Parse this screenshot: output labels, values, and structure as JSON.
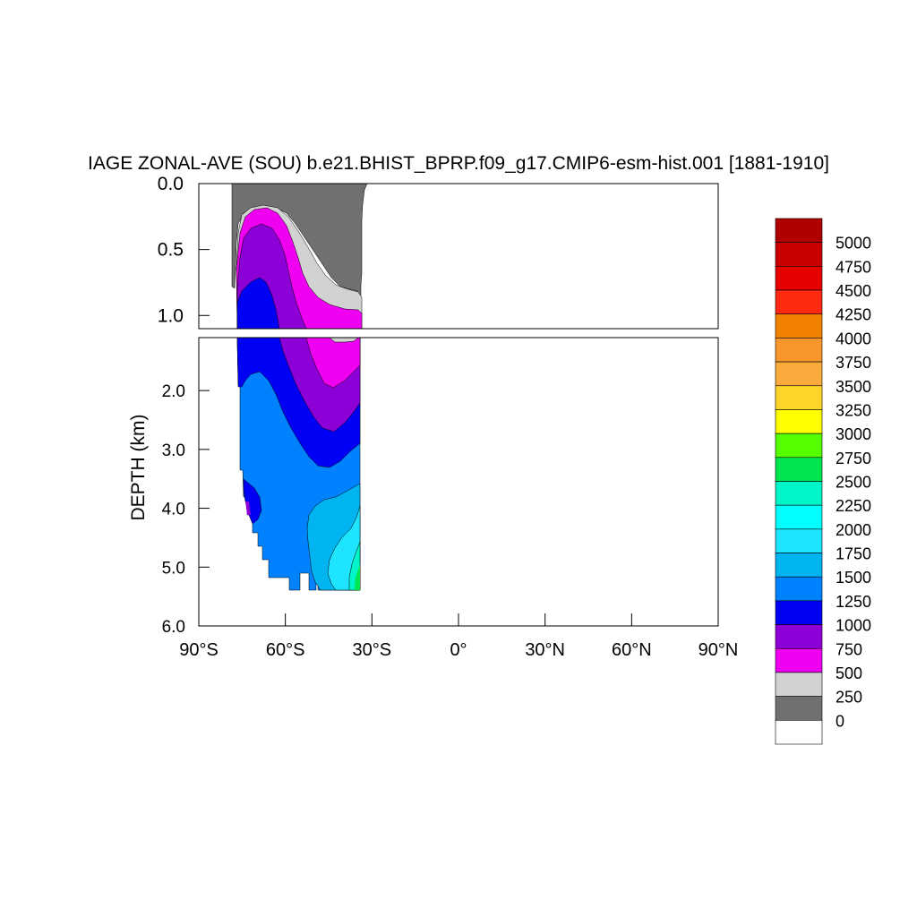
{
  "chart_data": {
    "type": "heatmap",
    "title": "IAGE ZONAL-AVE (SOU) b.e21.BHIST_BPRP.f09_g17.CMIP6-esm-hist.001 [1881-1910]",
    "ylabel": "DEPTH (km)",
    "xlabel": "",
    "x_ticks": [
      "90°S",
      "60°S",
      "30°S",
      "0°",
      "30°N",
      "60°N",
      "90°N"
    ],
    "x_values": [
      -90,
      -60,
      -30,
      0,
      30,
      60,
      90
    ],
    "xlim": [
      -90,
      90
    ],
    "y_ticks_upper": [
      "0.0",
      "0.5",
      "1.0"
    ],
    "y_values_upper": [
      0.0,
      0.5,
      1.0
    ],
    "ylim_upper": [
      0.0,
      1.1
    ],
    "y_ticks_lower": [
      "2.0",
      "3.0",
      "4.0",
      "5.0",
      "6.0"
    ],
    "y_values_lower": [
      2.0,
      3.0,
      4.0,
      5.0,
      6.0
    ],
    "ylim_lower": [
      1.1,
      6.0
    ],
    "colorbar": {
      "labels": [
        "5000",
        "4750",
        "4500",
        "4250",
        "4000",
        "3750",
        "3500",
        "3250",
        "3000",
        "2750",
        "2500",
        "2250",
        "2000",
        "1750",
        "1500",
        "1250",
        "1000",
        "750",
        "500",
        "250",
        "0"
      ],
      "colors": [
        "#b00000",
        "#c80000",
        "#e60000",
        "#ff2a10",
        "#f28000",
        "#f7962a",
        "#fbaa3c",
        "#ffd52a",
        "#ffff00",
        "#55ff00",
        "#00e650",
        "#00f5c8",
        "#00ffff",
        "#1ee4ff",
        "#00b4f0",
        "#0082ff",
        "#0000f5",
        "#8c00d7",
        "#f000f0",
        "#d2d2d2",
        "#707070",
        "#ffffff"
      ]
    },
    "regions": [
      {
        "level": "0-250",
        "color": "#707070",
        "lat_range": [
          -78,
          -32
        ],
        "depth_range": [
          0.0,
          0.85
        ]
      },
      {
        "level": "250-500",
        "color": "#d2d2d2",
        "lat_range": [
          -75,
          -34
        ],
        "depth_range": [
          0.17,
          1.25
        ]
      },
      {
        "level": "500-750",
        "color": "#f000f0",
        "lat_range": [
          -74,
          -34
        ],
        "depth_range": [
          0.17,
          2.0
        ]
      },
      {
        "level": "750-1000",
        "color": "#8c00d7",
        "lat_range": [
          -74,
          -34
        ],
        "depth_range": [
          0.3,
          2.7
        ]
      },
      {
        "level": "1000-1250",
        "color": "#0000f5",
        "lat_range": [
          -76,
          -34
        ],
        "depth_range": [
          0.7,
          3.4
        ]
      },
      {
        "level": "1250-1500",
        "color": "#0082ff",
        "lat_range": [
          -76,
          -34
        ],
        "depth_range": [
          1.3,
          5.4
        ]
      },
      {
        "level": "1500-1750",
        "color": "#00b4f0",
        "lat_range": [
          -52,
          -34
        ],
        "depth_range": [
          3.6,
          5.4
        ]
      },
      {
        "level": "1750-2000",
        "color": "#1ee4ff",
        "lat_range": [
          -43,
          -34
        ],
        "depth_range": [
          4.3,
          5.4
        ]
      },
      {
        "level": "2000-2250",
        "color": "#00f5c8",
        "lat_range": [
          -36,
          -34
        ],
        "depth_range": [
          5.0,
          5.4
        ]
      }
    ]
  }
}
